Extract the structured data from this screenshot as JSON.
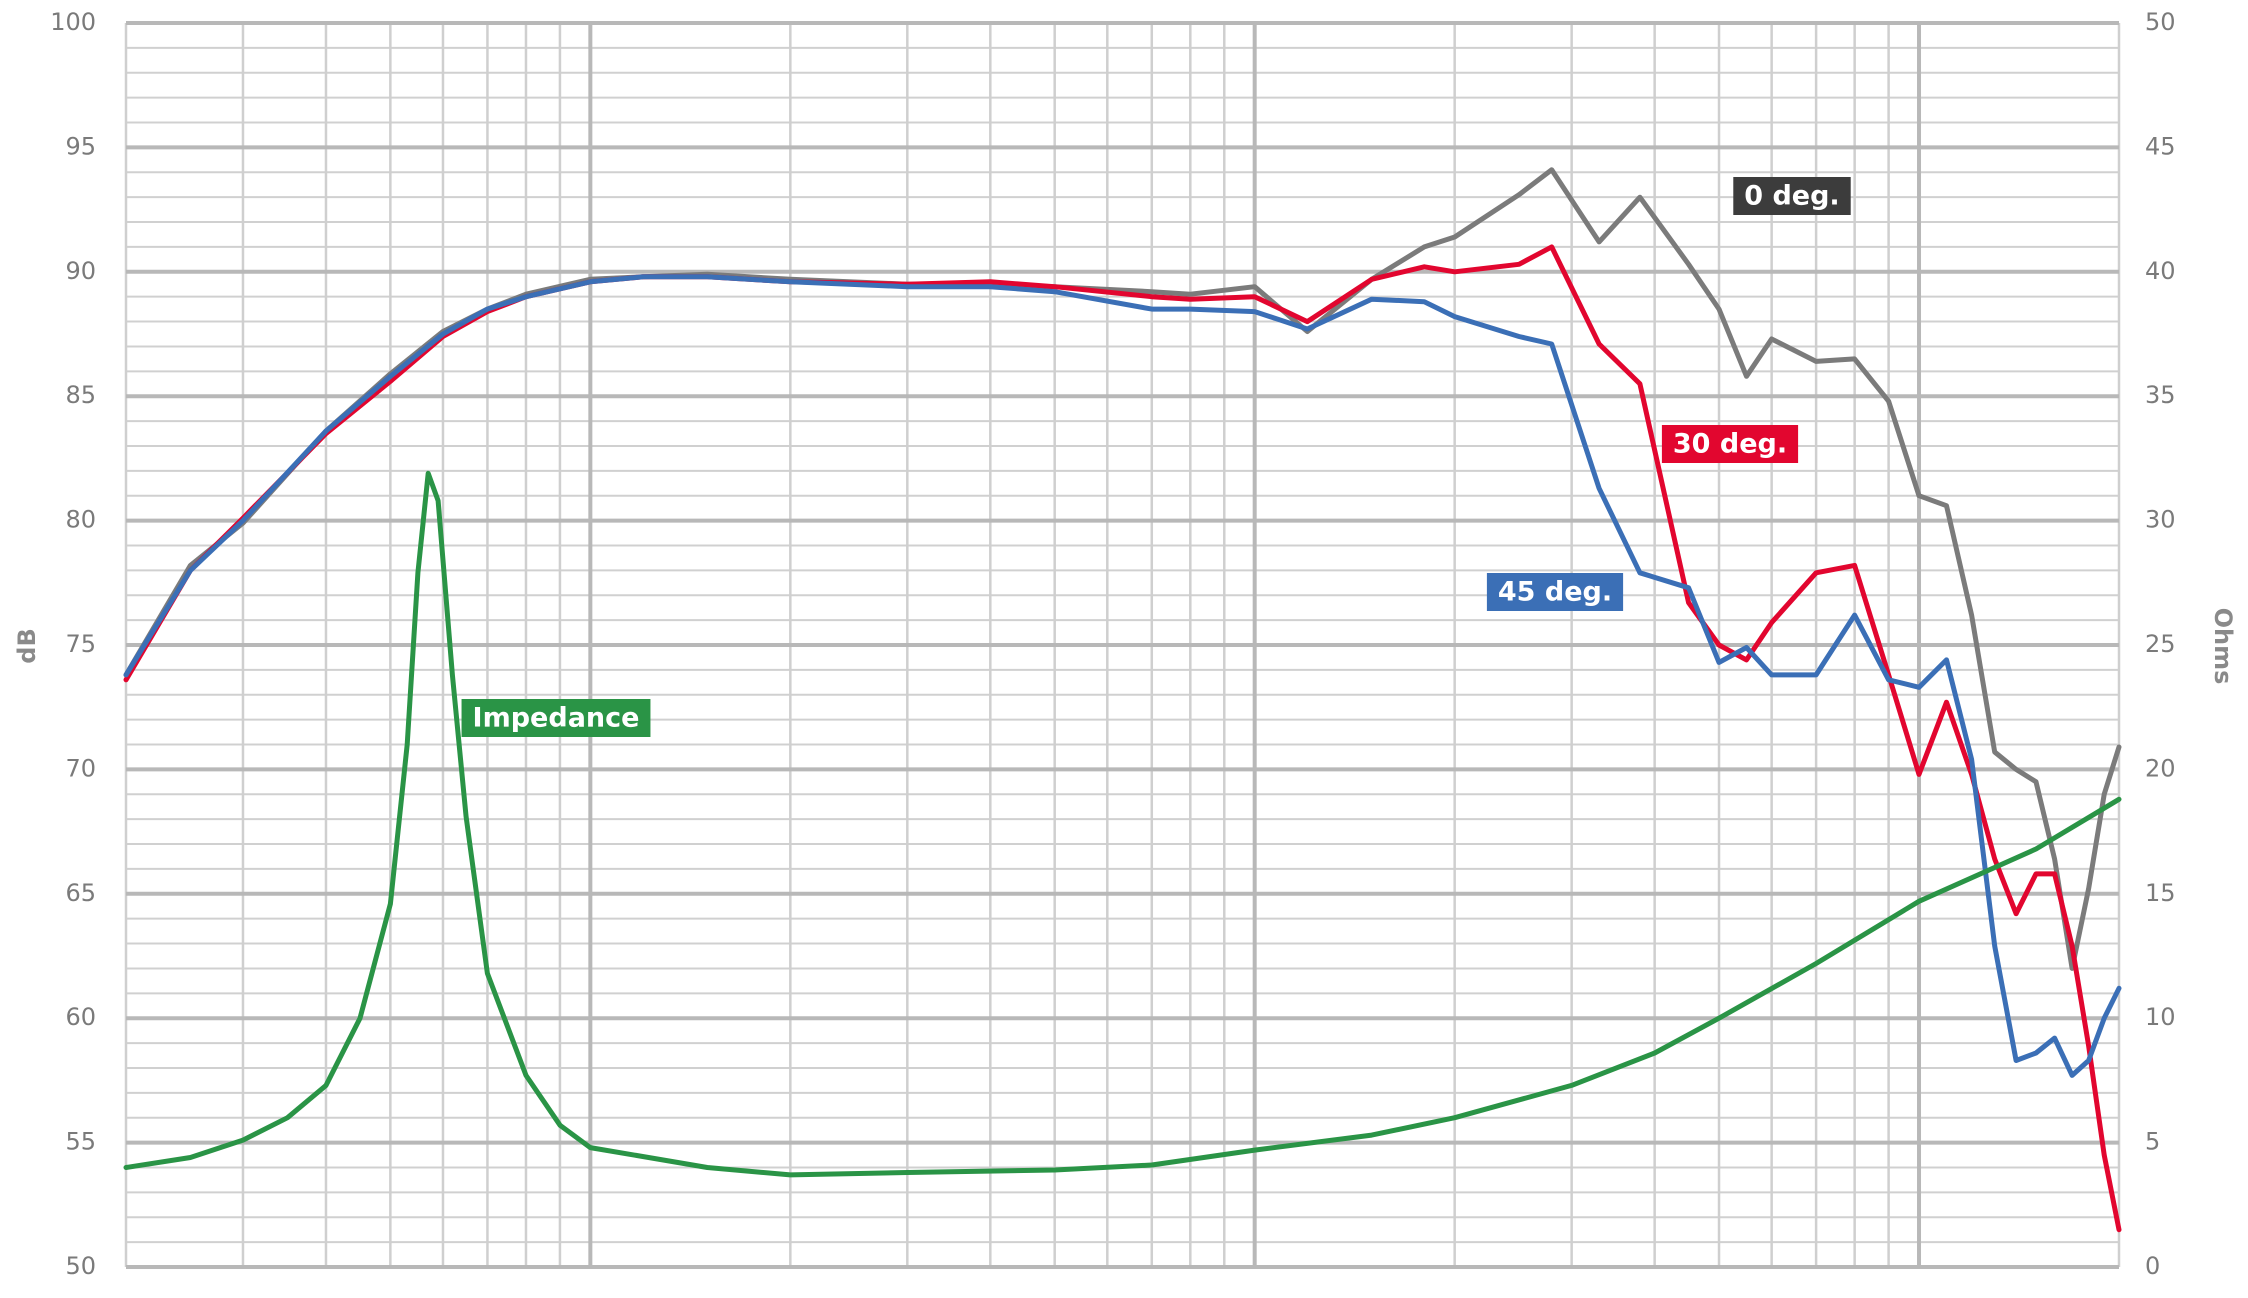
{
  "chart_data": {
    "type": "line",
    "xscale": "log",
    "xlim": [
      20,
      20000
    ],
    "xticks": [
      20,
      30,
      40,
      50,
      60,
      70,
      80,
      90,
      100,
      200,
      300,
      400,
      500,
      600,
      700,
      800,
      900,
      1000,
      2000,
      3000,
      4000,
      5000,
      6000,
      7000,
      8000,
      9000,
      10000,
      20000
    ],
    "ylabel": "dB",
    "ylim": [
      50,
      100
    ],
    "yticks": [
      50,
      55,
      60,
      65,
      70,
      75,
      80,
      85,
      90,
      95,
      100
    ],
    "y2label": "Ohms",
    "y2lim": [
      0,
      50
    ],
    "y2ticks": [
      0,
      5,
      10,
      15,
      20,
      25,
      30,
      35,
      40,
      45,
      50
    ],
    "grid": true,
    "x": [
      20,
      25,
      30,
      40,
      50,
      60,
      70,
      80,
      100,
      120,
      150,
      200,
      300,
      400,
      500,
      700,
      800,
      1000,
      1200,
      1500,
      1800,
      2000,
      2500,
      2800,
      3300,
      3800,
      4500,
      5000,
      5500,
      6000,
      7000,
      8000,
      9000,
      10000,
      11000,
      12000,
      13000,
      14000,
      15000,
      16000,
      17000,
      18000,
      19000,
      20000
    ],
    "series": [
      {
        "name": "0 deg.",
        "color": "#7b7b7b",
        "label_color": "#3c3c3c",
        "values": [
          73.8,
          78.2,
          79.9,
          83.6,
          85.9,
          87.6,
          88.5,
          89.1,
          89.7,
          89.8,
          89.9,
          89.7,
          89.5,
          89.5,
          89.4,
          89.2,
          89.1,
          89.4,
          87.6,
          89.7,
          91.0,
          91.4,
          93.1,
          94.1,
          91.2,
          93.0,
          90.3,
          88.5,
          85.8,
          87.3,
          86.4,
          86.5,
          84.8,
          81.0,
          80.6,
          76.2,
          70.7,
          70.0,
          69.5,
          66.4,
          62.0,
          65.2,
          69.0,
          70.9
        ]
      },
      {
        "name": "30 deg.",
        "color": "#e2062f",
        "label_color": "#e2062f",
        "values": [
          73.6,
          78.0,
          80.1,
          83.5,
          85.6,
          87.4,
          88.4,
          89.0,
          89.6,
          89.8,
          89.8,
          89.6,
          89.5,
          89.6,
          89.4,
          89.0,
          88.9,
          89.0,
          88.0,
          89.7,
          90.2,
          90.0,
          90.3,
          91.0,
          87.1,
          85.5,
          76.7,
          75.0,
          74.4,
          75.9,
          77.9,
          78.2,
          73.8,
          69.8,
          72.7,
          69.8,
          66.4,
          64.2,
          65.8,
          65.8,
          62.9,
          58.9,
          54.5,
          51.5
        ]
      },
      {
        "name": "45 deg.",
        "color": "#3b6fb6",
        "label_color": "#3b6fb6",
        "values": [
          73.8,
          78.0,
          80.0,
          83.6,
          85.8,
          87.5,
          88.5,
          89.0,
          89.6,
          89.8,
          89.8,
          89.6,
          89.4,
          89.4,
          89.2,
          88.5,
          88.5,
          88.4,
          87.7,
          88.9,
          88.8,
          88.2,
          87.4,
          87.1,
          81.3,
          77.9,
          77.3,
          74.3,
          74.9,
          73.8,
          73.8,
          76.2,
          73.6,
          73.3,
          74.4,
          70.4,
          62.9,
          58.3,
          58.6,
          59.2,
          57.7,
          58.3,
          60.0,
          61.2
        ]
      },
      {
        "name": "Impedance",
        "color": "#2a9446",
        "label_color": "#2a9446",
        "axis": "y2",
        "x": [
          20,
          25,
          30,
          35,
          40,
          45,
          50,
          53,
          55,
          57,
          59,
          62,
          65,
          70,
          80,
          90,
          100,
          150,
          200,
          300,
          500,
          700,
          1000,
          1500,
          2000,
          3000,
          4000,
          5000,
          7000,
          10000,
          15000,
          20000
        ],
        "values": [
          4.0,
          4.4,
          5.1,
          6.0,
          7.3,
          10.0,
          14.6,
          21.0,
          27.9,
          31.9,
          30.8,
          23.8,
          18.1,
          11.8,
          7.7,
          5.7,
          4.8,
          4.0,
          3.7,
          3.8,
          3.9,
          4.1,
          4.7,
          5.3,
          6.0,
          7.3,
          8.6,
          10.0,
          12.2,
          14.7,
          16.8,
          18.8
        ]
      }
    ]
  }
}
